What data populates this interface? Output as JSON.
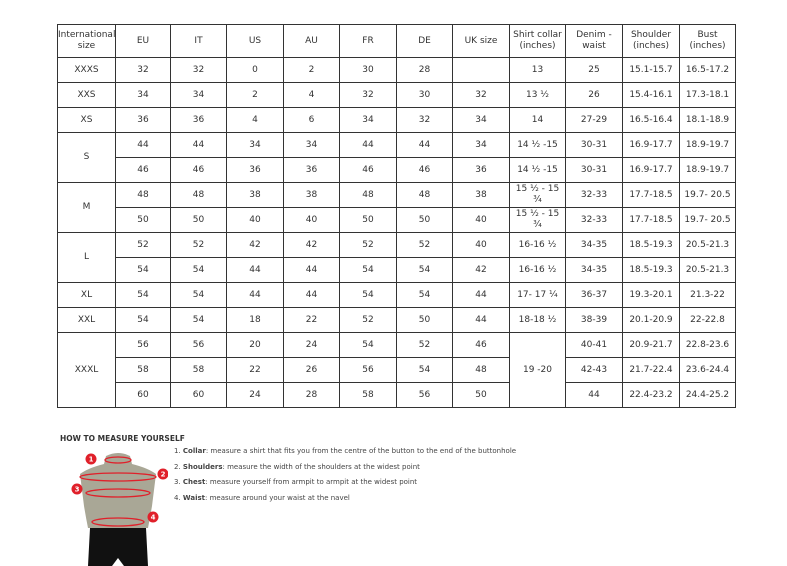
{
  "headers": [
    "International size",
    "EU",
    "IT",
    "US",
    "AU",
    "FR",
    "DE",
    "UK size",
    "Shirt collar (inches)",
    "Denim - waist",
    "Shoulder (inches)",
    "Bust (inches)"
  ],
  "groups": [
    {
      "size": "XXXS",
      "rows": [
        [
          "32",
          "32",
          "0",
          "2",
          "30",
          "28",
          "",
          "13",
          "25",
          "15.1-15.7",
          "16.5-17.2"
        ]
      ]
    },
    {
      "size": "XXS",
      "rows": [
        [
          "34",
          "34",
          "2",
          "4",
          "32",
          "30",
          "32",
          "13 ½",
          "26",
          "15.4-16.1",
          "17.3-18.1"
        ]
      ]
    },
    {
      "size": "XS",
      "rows": [
        [
          "36",
          "36",
          "4",
          "6",
          "34",
          "32",
          "34",
          "14",
          "27-29",
          "16.5-16.4",
          "18.1-18.9"
        ]
      ]
    },
    {
      "size": "S",
      "rows": [
        [
          "44",
          "44",
          "34",
          "34",
          "44",
          "44",
          "34",
          "14 ½ -15",
          "30-31",
          "16.9-17.7",
          "18.9-19.7"
        ],
        [
          "46",
          "46",
          "36",
          "36",
          "46",
          "46",
          "36",
          "14 ½ -15",
          "30-31",
          "16.9-17.7",
          "18.9-19.7"
        ]
      ]
    },
    {
      "size": "M",
      "rows": [
        [
          "48",
          "48",
          "38",
          "38",
          "48",
          "48",
          "38",
          "15 ½ - 15 ¾",
          "32-33",
          "17.7-18.5",
          "19.7- 20.5"
        ],
        [
          "50",
          "50",
          "40",
          "40",
          "50",
          "50",
          "40",
          "15 ½ - 15 ¾",
          "32-33",
          "17.7-18.5",
          "19.7- 20.5"
        ]
      ]
    },
    {
      "size": "L",
      "rows": [
        [
          "52",
          "52",
          "42",
          "42",
          "52",
          "52",
          "40",
          "16-16 ½",
          "34-35",
          "18.5-19.3",
          "20.5-21.3"
        ],
        [
          "54",
          "54",
          "44",
          "44",
          "54",
          "54",
          "42",
          "16-16 ½",
          "34-35",
          "18.5-19.3",
          "20.5-21.3"
        ]
      ]
    },
    {
      "size": "XL",
      "rows": [
        [
          "54",
          "54",
          "44",
          "44",
          "54",
          "54",
          "44",
          "17- 17 ¼",
          "36-37",
          "19.3-20.1",
          "21.3-22"
        ]
      ]
    },
    {
      "size": "XXL",
      "rows": [
        [
          "54",
          "54",
          "18",
          "22",
          "52",
          "50",
          "44",
          "18-18 ½",
          "38-39",
          "20.1-20.9",
          "22-22.8"
        ]
      ]
    },
    {
      "size": "XXXL",
      "collar": "19 -20",
      "rows": [
        [
          "56",
          "56",
          "20",
          "24",
          "54",
          "52",
          "46",
          null,
          "40-41",
          "20.9-21.7",
          "22.8-23.6"
        ],
        [
          "58",
          "58",
          "22",
          "26",
          "56",
          "54",
          "48",
          null,
          "42-43",
          "21.7-22.4",
          "23.6-24.4"
        ],
        [
          "60",
          "60",
          "24",
          "28",
          "58",
          "56",
          "50",
          null,
          "44",
          "22.4-23.2",
          "24.4-25.2"
        ]
      ]
    }
  ],
  "howto": {
    "title": "HOW TO MEASURE YOURSELF",
    "items": [
      {
        "num": "1.",
        "label": "Collar",
        "text": ": measure a shirt that fits you from the centre of the button to the end of the buttonhole"
      },
      {
        "num": "2.",
        "label": "Shoulders",
        "text": ": measure the width of the shoulders at the widest point"
      },
      {
        "num": "3.",
        "label": "Chest",
        "text": ": measure yourself from armpit to armpit at the widest point"
      },
      {
        "num": "4.",
        "label": "Waist",
        "text": ": measure around your waist at the navel"
      }
    ],
    "markers": [
      "1",
      "2",
      "3",
      "4"
    ]
  },
  "colors": {
    "marker": "#e0202a",
    "torso": "#a9a796"
  }
}
